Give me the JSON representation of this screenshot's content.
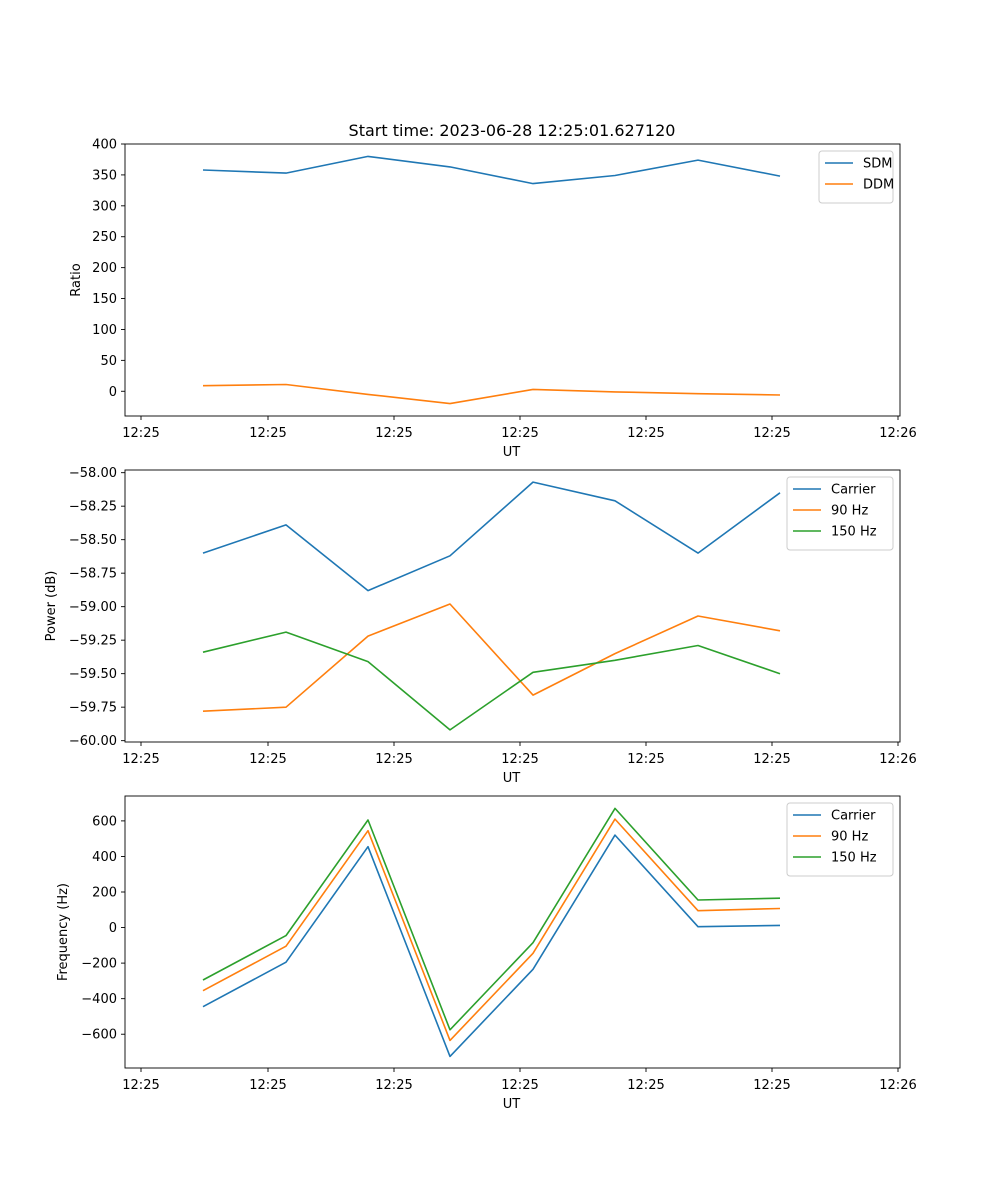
{
  "figure_title": "Start time: 2023-06-28 12:25:01.627120",
  "colors": {
    "blue": "#1f77b4",
    "orange": "#ff7f0e",
    "green": "#2ca02c"
  },
  "chart_data": [
    {
      "type": "line",
      "xlabel": "UT",
      "ylabel": "Ratio",
      "x_tick_labels": [
        "12:25",
        "12:25",
        "12:25",
        "12:25",
        "12:25",
        "12:25",
        "12:26"
      ],
      "yticks": [
        0,
        50,
        100,
        150,
        200,
        250,
        300,
        350,
        400
      ],
      "ytick_labels": [
        "0",
        "50",
        "100",
        "150",
        "200",
        "250",
        "300",
        "350",
        "400"
      ],
      "ylim": [
        -40,
        400
      ],
      "grid": false,
      "legend": "top-right",
      "series": [
        {
          "name": "SDM",
          "color": "#1f77b4",
          "values": [
            358,
            353,
            380,
            363,
            336,
            349,
            374,
            348
          ]
        },
        {
          "name": "DDM",
          "color": "#ff7f0e",
          "values": [
            9,
            11,
            -5,
            -20,
            3,
            -1,
            -4,
            -6
          ]
        }
      ]
    },
    {
      "type": "line",
      "xlabel": "UT",
      "ylabel": "Power (dB)",
      "x_tick_labels": [
        "12:25",
        "12:25",
        "12:25",
        "12:25",
        "12:25",
        "12:25",
        "12:26"
      ],
      "yticks": [
        -60.0,
        -59.75,
        -59.5,
        -59.25,
        -59.0,
        -58.75,
        -58.5,
        -58.25,
        -58.0
      ],
      "ytick_labels": [
        "−60.00",
        "−59.75",
        "−59.50",
        "−59.25",
        "−59.00",
        "−58.75",
        "−58.50",
        "−58.25",
        "−58.00"
      ],
      "ylim": [
        -60.01,
        -57.98
      ],
      "grid": false,
      "legend": "top-right",
      "series": [
        {
          "name": "Carrier",
          "color": "#1f77b4",
          "values": [
            -58.6,
            -58.39,
            -58.88,
            -58.62,
            -58.07,
            -58.21,
            -58.6,
            -58.15
          ]
        },
        {
          "name": "90 Hz",
          "color": "#ff7f0e",
          "values": [
            -59.78,
            -59.75,
            -59.22,
            -58.98,
            -59.66,
            -59.35,
            -59.07,
            -59.18
          ]
        },
        {
          "name": "150 Hz",
          "color": "#2ca02c",
          "values": [
            -59.34,
            -59.19,
            -59.41,
            -59.92,
            -59.49,
            -59.4,
            -59.29,
            -59.5
          ]
        }
      ]
    },
    {
      "type": "line",
      "xlabel": "UT",
      "ylabel": "Frequency (Hz)",
      "x_tick_labels": [
        "12:25",
        "12:25",
        "12:25",
        "12:25",
        "12:25",
        "12:25",
        "12:26"
      ],
      "yticks": [
        -600,
        -400,
        -200,
        0,
        200,
        400,
        600
      ],
      "ytick_labels": [
        "−600",
        "−400",
        "−200",
        "0",
        "200",
        "400",
        "600"
      ],
      "ylim": [
        -790,
        740
      ],
      "grid": false,
      "legend": "top-right",
      "series": [
        {
          "name": "Carrier",
          "color": "#1f77b4",
          "values": [
            -445,
            -195,
            455,
            -725,
            -235,
            520,
            5,
            12
          ]
        },
        {
          "name": "90 Hz",
          "color": "#ff7f0e",
          "values": [
            -355,
            -105,
            545,
            -635,
            -145,
            610,
            95,
            107
          ]
        },
        {
          "name": "150 Hz",
          "color": "#2ca02c",
          "values": [
            -295,
            -45,
            605,
            -575,
            -85,
            670,
            155,
            165
          ]
        }
      ]
    }
  ]
}
